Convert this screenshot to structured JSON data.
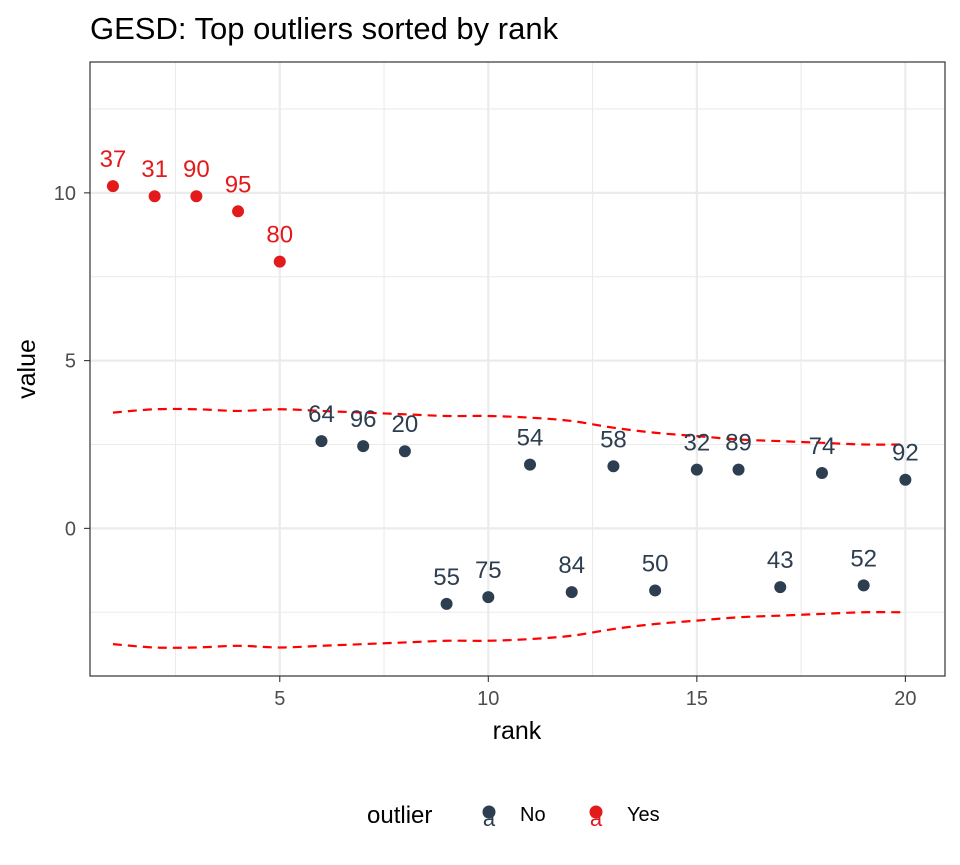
{
  "chart_data": {
    "type": "scatter",
    "title": "GESD: Top outliers sorted by rank",
    "xlabel": "rank",
    "ylabel": "value",
    "xlim": [
      0.45,
      20.95
    ],
    "ylim": [
      -4.4,
      13.9
    ],
    "x_ticks": [
      5,
      10,
      15,
      20
    ],
    "y_ticks": [
      0,
      5,
      10
    ],
    "grid": true,
    "legend": {
      "title": "outlier",
      "position": "bottom",
      "entries": [
        {
          "label": "No",
          "color": "#2c3e50"
        },
        {
          "label": "Yes",
          "color": "#e31a1c"
        }
      ]
    },
    "points": [
      {
        "rank": 1,
        "value": 10.2,
        "label": "37",
        "outlier": "Yes"
      },
      {
        "rank": 2,
        "value": 9.9,
        "label": "31",
        "outlier": "Yes"
      },
      {
        "rank": 3,
        "value": 9.9,
        "label": "90",
        "outlier": "Yes"
      },
      {
        "rank": 4,
        "value": 9.45,
        "label": "95",
        "outlier": "Yes"
      },
      {
        "rank": 5,
        "value": 7.95,
        "label": "80",
        "outlier": "Yes"
      },
      {
        "rank": 6,
        "value": 2.6,
        "label": "64",
        "outlier": "No"
      },
      {
        "rank": 7,
        "value": 2.45,
        "label": "96",
        "outlier": "No"
      },
      {
        "rank": 8,
        "value": 2.3,
        "label": "20",
        "outlier": "No"
      },
      {
        "rank": 9,
        "value": -2.25,
        "label": "55",
        "outlier": "No"
      },
      {
        "rank": 10,
        "value": -2.05,
        "label": "75",
        "outlier": "No"
      },
      {
        "rank": 11,
        "value": 1.9,
        "label": "54",
        "outlier": "No"
      },
      {
        "rank": 12,
        "value": -1.9,
        "label": "84",
        "outlier": "No"
      },
      {
        "rank": 13,
        "value": 1.85,
        "label": "58",
        "outlier": "No"
      },
      {
        "rank": 14,
        "value": -1.85,
        "label": "50",
        "outlier": "No"
      },
      {
        "rank": 15,
        "value": 1.75,
        "label": "32",
        "outlier": "No"
      },
      {
        "rank": 16,
        "value": 1.75,
        "label": "89",
        "outlier": "No"
      },
      {
        "rank": 17,
        "value": -1.75,
        "label": "43",
        "outlier": "No"
      },
      {
        "rank": 18,
        "value": 1.65,
        "label": "74",
        "outlier": "No"
      },
      {
        "rank": 19,
        "value": -1.7,
        "label": "52",
        "outlier": "No"
      },
      {
        "rank": 20,
        "value": 1.45,
        "label": "92",
        "outlier": "No"
      }
    ],
    "limits": {
      "color": "#ff0000",
      "rank": [
        1,
        2,
        3,
        4,
        5,
        6,
        7,
        8,
        9,
        10,
        11,
        12,
        13,
        14,
        15,
        16,
        17,
        18,
        19,
        20
      ],
      "upper": [
        3.45,
        3.55,
        3.55,
        3.5,
        3.55,
        3.5,
        3.45,
        3.4,
        3.35,
        3.35,
        3.3,
        3.2,
        3.0,
        2.85,
        2.75,
        2.65,
        2.6,
        2.55,
        2.5,
        2.5
      ],
      "lower": [
        -3.45,
        -3.55,
        -3.55,
        -3.5,
        -3.55,
        -3.5,
        -3.45,
        -3.4,
        -3.35,
        -3.35,
        -3.3,
        -3.2,
        -3.0,
        -2.85,
        -2.75,
        -2.65,
        -2.6,
        -2.55,
        -2.5,
        -2.5
      ]
    }
  }
}
